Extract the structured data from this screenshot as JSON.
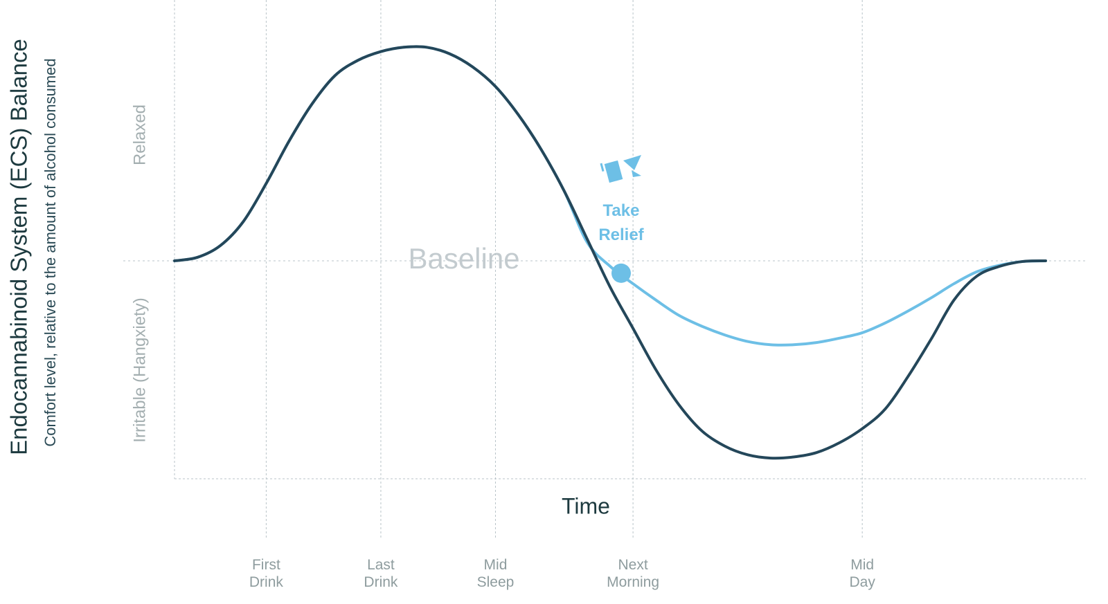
{
  "chart_data": {
    "type": "line",
    "title": "Endocannabinoid System (ECS)  Balance",
    "subtitle": "Comfort level, relative to the amount of alcohol consumed",
    "upper_label": "Relaxed",
    "lower_label": "Irritable (Hangxiety)",
    "x_label": "Time",
    "baseline": {
      "value": 0,
      "label": "Baseline"
    },
    "categories": [
      null,
      null,
      null,
      null,
      "First\nDrink",
      null,
      null,
      null,
      null,
      "Last\nDrink",
      null,
      null,
      null,
      null,
      "Mid\nSleep",
      null,
      null,
      null,
      null,
      null,
      "Next\nMorning",
      null,
      null,
      null,
      null,
      null,
      null,
      null,
      null,
      null,
      "Mid\nDay",
      null,
      null,
      null,
      null,
      null,
      null,
      null,
      null
    ],
    "ylim": [
      -1,
      1
    ],
    "series": [
      {
        "color": "#24475a",
        "values": [
          0,
          0.016,
          0.07,
          0.18,
          0.355,
          0.55,
          0.72,
          0.85,
          0.92,
          0.96,
          0.98,
          0.98,
          0.95,
          0.89,
          0.8,
          0.67,
          0.51,
          0.32,
          0.1,
          -0.12,
          -0.31,
          -0.5,
          -0.66,
          -0.78,
          -0.85,
          -0.89,
          -0.905,
          -0.9,
          -0.88,
          -0.835,
          -0.77,
          -0.68,
          -0.53,
          -0.36,
          -0.18,
          -0.07,
          -0.025,
          -0.003,
          0
        ]
      },
      {
        "color": "#6dbfe6",
        "values": [
          0,
          0.016,
          0.07,
          0.18,
          0.355,
          0.55,
          0.72,
          0.85,
          0.92,
          0.96,
          0.98,
          0.98,
          0.95,
          0.89,
          0.8,
          0.67,
          0.51,
          0.32,
          0.085,
          -0.025,
          -0.105,
          -0.18,
          -0.25,
          -0.3,
          -0.34,
          -0.37,
          -0.385,
          -0.385,
          -0.375,
          -0.355,
          -0.33,
          -0.285,
          -0.23,
          -0.17,
          -0.105,
          -0.05,
          -0.02,
          -0.003,
          0
        ]
      }
    ],
    "annotation": {
      "text": "Take\nRelief",
      "series": 1,
      "index": 19,
      "color": "#6dbfe6"
    }
  }
}
